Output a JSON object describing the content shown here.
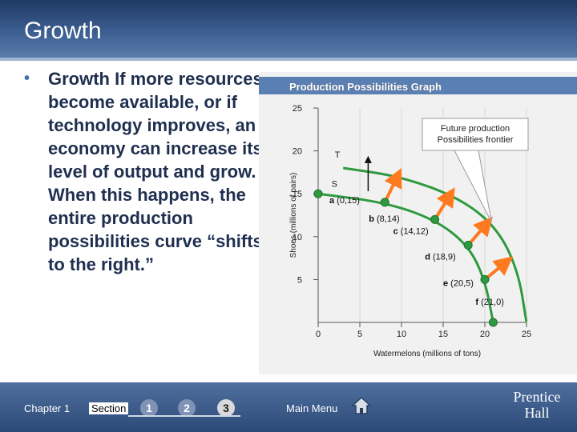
{
  "slide": {
    "title": "Growth",
    "bullet_lead": "Growth",
    "bullet_text": " If more resources become available, or if technology improves, an economy can increase its level of output and grow. When this happens, the entire production possibilities curve “shifts to the right.”"
  },
  "footer": {
    "chapter_label": "Chapter 1",
    "section_label": "Section",
    "section_numbers": [
      "1",
      "2",
      "3"
    ],
    "active_section": "3",
    "main_menu_label": "Main Menu",
    "home_icon": "home-icon",
    "logo_line1": "Prentice",
    "logo_line2": "Hall"
  },
  "chart_data": {
    "type": "line",
    "title": "Production Possibilities Graph",
    "xlabel": "Watermelons (millions of tons)",
    "ylabel": "Shoes (millions of pairs)",
    "xlim": [
      0,
      25
    ],
    "ylim": [
      0,
      25
    ],
    "x_ticks": [
      0,
      5,
      10,
      15,
      20,
      25
    ],
    "y_ticks": [
      5,
      10,
      15,
      20,
      25
    ],
    "series": [
      {
        "name": "",
        "points": [
          {
            "x": 0,
            "y": 15,
            "label": "a (0,15)"
          },
          {
            "x": 8,
            "y": 14,
            "label": "b (8,14)"
          },
          {
            "x": 14,
            "y": 12,
            "label": "c (14,12)"
          },
          {
            "x": 18,
            "y": 9,
            "label": "d (18,9)"
          },
          {
            "x": 20,
            "y": 5,
            "label": "e (20,5)"
          },
          {
            "x": 21,
            "y": 0,
            "label": "f (21,0)"
          }
        ]
      },
      {
        "name": "Future production Possibilities frontier",
        "points": [
          {
            "x": 3,
            "y": 18
          },
          {
            "x": 10,
            "y": 17
          },
          {
            "x": 17,
            "y": 14.5
          },
          {
            "x": 21.5,
            "y": 11
          },
          {
            "x": 24,
            "y": 6
          },
          {
            "x": 25,
            "y": 0
          }
        ]
      }
    ],
    "arrows": [
      {
        "from": [
          8,
          14
        ],
        "to": [
          9.5,
          17
        ]
      },
      {
        "from": [
          14,
          12
        ],
        "to": [
          15.8,
          14.8
        ]
      },
      {
        "from": [
          18,
          9
        ],
        "to": [
          20.2,
          11.5
        ]
      },
      {
        "from": [
          20,
          5
        ],
        "to": [
          22.5,
          7
        ]
      }
    ],
    "vertical_arrow": {
      "from": [
        6,
        15.3
      ],
      "to": [
        6,
        19
      ]
    },
    "annotations": [
      {
        "text": "T",
        "x": 2,
        "y": 19.2
      },
      {
        "text": "S",
        "x": 1.6,
        "y": 15.8
      },
      {
        "text": "Future production Possibilities frontier",
        "x": 18,
        "y": 21
      }
    ],
    "colors": {
      "curve": "#2e9a3f",
      "arrow": "#ff7a1f",
      "point": "#2e9a3f"
    }
  }
}
